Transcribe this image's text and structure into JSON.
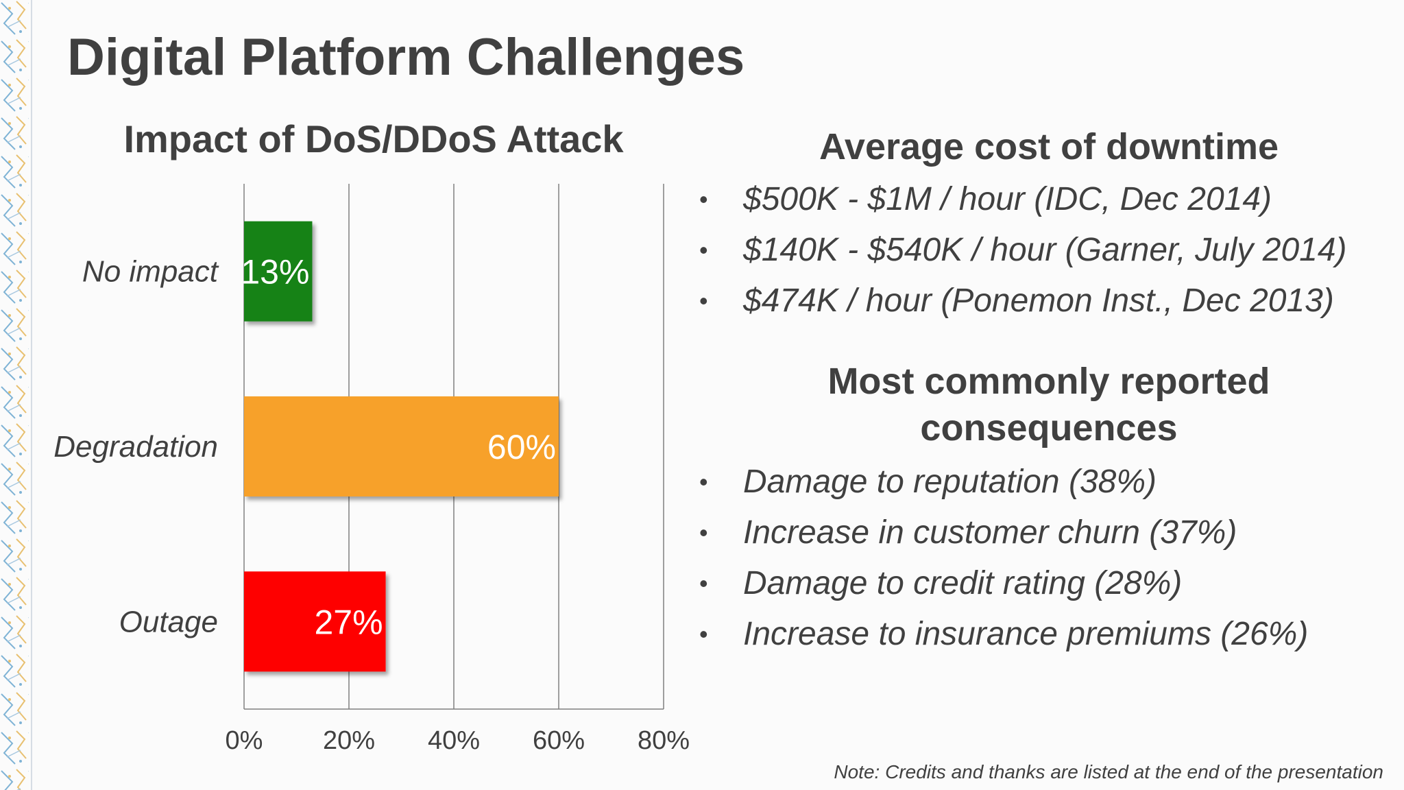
{
  "slide": {
    "title": "Digital Platform Challenges",
    "note": "Note: Credits and thanks are listed at the end of the presentation"
  },
  "downtime": {
    "heading": "Average cost of downtime",
    "items": [
      "$500K - $1M / hour (IDC, Dec 2014)",
      "$140K - $540K / hour (Garner, July 2014)",
      "$474K / hour (Ponemon Inst., Dec 2013)"
    ]
  },
  "consequences": {
    "heading_line1": "Most commonly reported",
    "heading_line2": "consequences",
    "items": [
      "Damage to reputation (38%)",
      "Increase in customer churn (37%)",
      "Damage to credit rating (28%)",
      "Increase to insurance premiums (26%)"
    ]
  },
  "chart_data": {
    "type": "bar",
    "orientation": "horizontal",
    "title": "Impact of DoS/DDoS Attack",
    "categories": [
      "No impact",
      "Degradation",
      "Outage"
    ],
    "values": [
      13,
      60,
      27
    ],
    "data_labels": [
      "13%",
      "60%",
      "27%"
    ],
    "colors": [
      "#138214",
      "#f7a12a",
      "#fe0000"
    ],
    "xlim": [
      0,
      80
    ],
    "x_ticks": [
      0,
      20,
      40,
      60,
      80
    ],
    "x_tick_labels": [
      "0%",
      "20%",
      "40%",
      "60%",
      "80%"
    ],
    "grid": true,
    "legend": false
  }
}
